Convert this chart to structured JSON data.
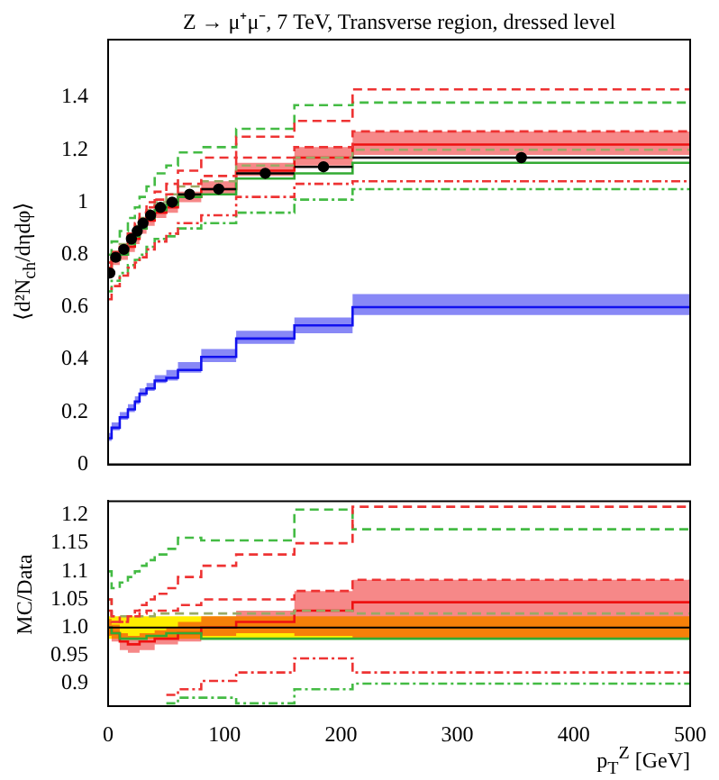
{
  "chart_data": [
    {
      "type": "step",
      "title": "Z → μ⁺μ⁻, 7 TeV, Transverse region, dressed level",
      "ylabel": "⟨d²N$_{ch}$/dηdφ⟩",
      "x": [
        0,
        3,
        10,
        17,
        23,
        27,
        33,
        40,
        50,
        60,
        80,
        110,
        160,
        210,
        500
      ],
      "xlim": [
        0,
        500
      ],
      "xticks": [
        0,
        100,
        200,
        300,
        400,
        500
      ],
      "ylim": [
        0,
        1.62
      ],
      "yticks": [
        0,
        0.2,
        0.4,
        0.6,
        0.8,
        1,
        1.2,
        1.4
      ],
      "tick_labels": "y",
      "grid": false,
      "legend": false,
      "series": [
        {
          "color": "#1111ee",
          "line_style": "solid",
          "values": [
            0.1,
            0.14,
            0.18,
            0.21,
            0.24,
            0.27,
            0.29,
            0.32,
            0.33,
            0.36,
            0.41,
            0.48,
            0.53,
            0.6,
            0.6
          ],
          "lower": [
            0.09,
            0.13,
            0.17,
            0.2,
            0.23,
            0.26,
            0.28,
            0.31,
            0.32,
            0.35,
            0.39,
            0.46,
            0.5,
            0.57,
            0.57
          ],
          "upper": [
            0.12,
            0.16,
            0.2,
            0.23,
            0.26,
            0.29,
            0.31,
            0.34,
            0.36,
            0.39,
            0.44,
            0.51,
            0.56,
            0.65,
            0.65
          ]
        },
        {
          "color": "#ee3333",
          "line_style": "dotted",
          "values": [
            0.63,
            0.68,
            0.72,
            0.75,
            0.77,
            0.79,
            0.82,
            0.85,
            0.88,
            0.92,
            0.95,
            1.02,
            1.07,
            1.08,
            1.08
          ]
        },
        {
          "color": "#44bb44",
          "line_style": "dotted",
          "values": [
            0.66,
            0.7,
            0.73,
            0.76,
            0.78,
            0.8,
            0.83,
            0.86,
            0.87,
            0.9,
            0.92,
            0.96,
            1.01,
            1.05,
            1.05
          ]
        },
        {
          "color": "#ee3333",
          "line_style": "dashed",
          "values": [
            0.77,
            0.81,
            0.83,
            0.88,
            0.92,
            0.96,
            1.0,
            1.04,
            1.07,
            1.12,
            1.17,
            1.25,
            1.31,
            1.43,
            1.43
          ]
        },
        {
          "color": "#44bb44",
          "line_style": "dashed",
          "values": [
            0.8,
            0.85,
            0.89,
            0.94,
            0.98,
            1.02,
            1.06,
            1.11,
            1.14,
            1.19,
            1.21,
            1.28,
            1.37,
            1.38,
            1.38
          ]
        },
        {
          "color": "#ee3333",
          "line_style": "dashed",
          "values": [
            0.75,
            0.8,
            0.83,
            0.88,
            0.91,
            0.94,
            0.98,
            1.01,
            1.03,
            1.07,
            1.1,
            1.17,
            1.21,
            1.27,
            1.27
          ]
        },
        {
          "color": "#99aa66",
          "line_style": "dashed",
          "values": [
            0.77,
            0.81,
            0.84,
            0.88,
            0.91,
            0.94,
            0.97,
            1.0,
            1.03,
            1.06,
            1.08,
            1.14,
            1.17,
            1.2,
            1.2
          ]
        },
        {
          "color": "#33aa33",
          "line_style": "solid",
          "values": [
            0.73,
            0.78,
            0.8,
            0.84,
            0.87,
            0.9,
            0.94,
            0.97,
            0.99,
            1.02,
            1.03,
            1.09,
            1.11,
            1.15,
            1.15
          ]
        },
        {
          "color": "#ee1111",
          "line_style": "solid",
          "values": [
            0.73,
            0.78,
            0.8,
            0.83,
            0.86,
            0.9,
            0.93,
            0.96,
            0.98,
            1.02,
            1.05,
            1.12,
            1.17,
            1.22,
            1.22
          ],
          "lower": [
            0.71,
            0.76,
            0.78,
            0.81,
            0.84,
            0.88,
            0.91,
            0.94,
            0.96,
            1.0,
            1.03,
            1.1,
            1.14,
            1.18,
            1.18
          ],
          "upper": [
            0.75,
            0.8,
            0.82,
            0.85,
            0.88,
            0.92,
            0.95,
            0.98,
            1.0,
            1.04,
            1.08,
            1.15,
            1.21,
            1.27,
            1.27
          ]
        },
        {
          "type": "scatter",
          "color": "#000000",
          "marker": "circle",
          "x": [
            1.5,
            6.5,
            13.5,
            20,
            25,
            30,
            36.5,
            45,
            55,
            70,
            95,
            135,
            185,
            355
          ],
          "values": [
            0.73,
            0.79,
            0.82,
            0.86,
            0.89,
            0.92,
            0.95,
            0.98,
            1.0,
            1.03,
            1.05,
            1.11,
            1.135,
            1.17
          ],
          "xerrors": [
            1.5,
            3.5,
            3.5,
            3,
            2,
            3,
            3.5,
            5,
            5,
            10,
            15,
            25,
            25,
            145
          ]
        }
      ]
    },
    {
      "type": "step",
      "ylabel": "MC/Data",
      "xlabel": "p$_{T}$$^{Z}$ [GeV]",
      "x": [
        0,
        3,
        10,
        17,
        23,
        27,
        33,
        40,
        50,
        60,
        80,
        110,
        160,
        210,
        500
      ],
      "xlim": [
        0,
        500
      ],
      "xticks": [
        0,
        100,
        200,
        300,
        400,
        500
      ],
      "ylim": [
        0.86,
        1.225
      ],
      "yticks": [
        0.9,
        0.95,
        {
          "value": 1,
          "label": "1.0"
        },
        1.05,
        1.1,
        1.15,
        1.2
      ],
      "grid": false,
      "legend": false,
      "ref_lines": [
        {
          "axis": "y",
          "value": 1,
          "color": "#000000"
        }
      ],
      "bands": [
        {
          "axis": "y",
          "from": 0.98,
          "to": 1.02,
          "color": "#ffee00"
        }
      ],
      "series": [
        {
          "color": "#ee3333",
          "line_style": "dotted",
          "values": [
            null,
            null,
            null,
            null,
            null,
            null,
            null,
            null,
            0.88,
            0.89,
            0.905,
            0.92,
            0.945,
            0.92,
            0.92
          ]
        },
        {
          "color": "#44bb44",
          "line_style": "dotted",
          "values": [
            null,
            null,
            null,
            null,
            null,
            null,
            null,
            null,
            0.865,
            0.875,
            0.875,
            0.865,
            0.89,
            0.9,
            0.9
          ]
        },
        {
          "color": "#ee3333",
          "line_style": "dashed",
          "values": [
            1.05,
            1.02,
            1.01,
            1.02,
            1.03,
            1.04,
            1.05,
            1.06,
            1.07,
            1.09,
            1.11,
            1.13,
            1.15,
            1.215,
            1.215
          ]
        },
        {
          "color": "#44bb44",
          "line_style": "dashed",
          "values": [
            1.1,
            1.07,
            1.08,
            1.09,
            1.1,
            1.11,
            1.12,
            1.13,
            1.14,
            1.16,
            1.155,
            1.155,
            1.21,
            1.175,
            1.175
          ]
        },
        {
          "color": "#ee3333",
          "line_style": "dashed",
          "values": [
            1.03,
            1.01,
            1.01,
            1.02,
            1.02,
            1.025,
            1.03,
            1.03,
            1.03,
            1.04,
            1.05,
            1.05,
            1.065,
            1.085,
            1.085
          ]
        },
        {
          "color": "#99aa66",
          "line_style": "dashed",
          "values": [
            1.05,
            1.02,
            1.02,
            1.02,
            1.02,
            1.02,
            1.02,
            1.025,
            1.025,
            1.025,
            1.025,
            1.025,
            1.03,
            1.025,
            1.025
          ]
        },
        {
          "color": "#33aa33",
          "line_style": "solid",
          "values": [
            1.0,
            0.99,
            0.98,
            0.98,
            0.98,
            0.98,
            0.985,
            0.985,
            0.99,
            0.99,
            0.98,
            0.98,
            0.98,
            0.98,
            0.98
          ]
        },
        {
          "color": "#ee1111",
          "line_style": "solid",
          "values": [
            1.0,
            0.99,
            0.975,
            0.97,
            0.97,
            0.975,
            0.975,
            0.98,
            0.98,
            0.99,
            1.0,
            1.01,
            1.03,
            1.045,
            1.045
          ],
          "lower": [
            0.985,
            0.975,
            0.96,
            0.955,
            0.955,
            0.96,
            0.96,
            0.97,
            0.97,
            0.975,
            0.985,
            0.99,
            0.985,
            0.98,
            0.98
          ],
          "upper": [
            1.015,
            1.005,
            0.99,
            0.985,
            0.985,
            0.99,
            0.99,
            0.995,
            1.0,
            1.01,
            1.02,
            1.03,
            1.065,
            1.085,
            1.085
          ]
        }
      ]
    }
  ]
}
